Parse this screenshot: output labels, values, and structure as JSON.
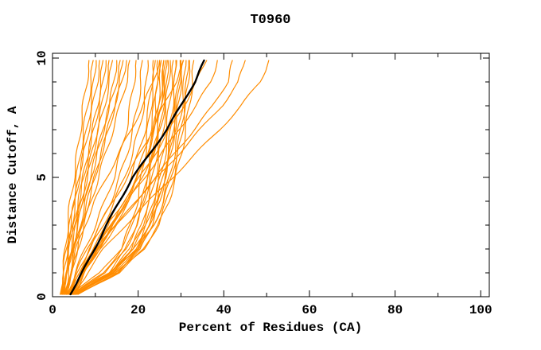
{
  "chart_data": {
    "type": "line",
    "title": "T0960",
    "xlabel": "Percent of Residues (CA)",
    "ylabel": "Distance Cutoff, A",
    "xlim": [
      0,
      102
    ],
    "ylim": [
      0,
      10.2
    ],
    "x_major_ticks": [
      0,
      20,
      40,
      60,
      80,
      100
    ],
    "x_minor_ticks": [
      10,
      30,
      50,
      70,
      90
    ],
    "y_major_ticks": [
      0,
      5,
      10
    ],
    "y_minor_ticks": [
      1,
      2,
      3,
      4,
      6,
      7,
      8,
      9
    ],
    "grid": false,
    "legend": "none",
    "colors": {
      "models": "#ff8c00",
      "highlight": "#000000",
      "axis": "#000000",
      "background": "#ffffff"
    },
    "y_samples": [
      0.1,
      1,
      2,
      3,
      4,
      5,
      6,
      7,
      8,
      9,
      9.9
    ],
    "series": [
      {
        "x": [
          2,
          2.5,
          3,
          3.5,
          4.2,
          5,
          5.8,
          6.5,
          7.2,
          8,
          8.5
        ]
      },
      {
        "x": [
          2.2,
          2.8,
          3.4,
          4.1,
          4.9,
          5.7,
          6.5,
          7.3,
          8.2,
          9,
          9.5
        ]
      },
      {
        "x": [
          2.5,
          3,
          3.7,
          4.5,
          5.3,
          6.2,
          7.1,
          8,
          8.9,
          9.7,
          10.2
        ]
      },
      {
        "x": [
          1.8,
          2.5,
          3.3,
          4.2,
          5.2,
          6.2,
          7.3,
          8.4,
          9.5,
          10.4,
          11
        ]
      },
      {
        "x": [
          2.8,
          3.4,
          4.2,
          5.1,
          6.1,
          7.2,
          8.3,
          9.4,
          10.5,
          11.3,
          11.8
        ]
      },
      {
        "x": [
          2.3,
          3.1,
          4,
          5,
          6.1,
          7.2,
          8.4,
          9.6,
          10.8,
          11.9,
          12.5
        ]
      },
      {
        "x": [
          3,
          3.8,
          4.7,
          5.7,
          6.8,
          8,
          9.2,
          10.4,
          11.6,
          12.6,
          13.2
        ]
      },
      {
        "x": [
          2.6,
          3.5,
          4.5,
          5.6,
          6.8,
          8.1,
          9.4,
          10.8,
          12.1,
          13.3,
          14
        ]
      },
      {
        "x": [
          3.2,
          4.1,
          5.2,
          6.4,
          7.7,
          9,
          10.4,
          11.8,
          13.2,
          14.4,
          15
        ]
      },
      {
        "x": [
          2.4,
          3.4,
          4.6,
          5.9,
          7.3,
          8.8,
          10.3,
          11.9,
          13.4,
          14.9,
          15.8
        ]
      },
      {
        "x": [
          3.5,
          4.5,
          5.7,
          7,
          8.4,
          9.9,
          11.4,
          12.9,
          14.4,
          15.8,
          16.5
        ]
      },
      {
        "x": [
          2.9,
          4,
          5.3,
          6.7,
          8.2,
          9.8,
          11.4,
          13,
          14.6,
          16.2,
          17.3
        ]
      },
      {
        "x": [
          3.3,
          4.5,
          5.9,
          7.4,
          9,
          10.7,
          12.4,
          14.1,
          15.8,
          17.2,
          18
        ]
      },
      {
        "x": [
          4.5,
          12,
          16,
          18.2,
          19.8,
          20.8,
          21.6,
          22.3,
          23,
          23.6,
          24
        ]
      },
      {
        "x": [
          5,
          13,
          17.2,
          19.5,
          21,
          22,
          22.8,
          23.5,
          24.1,
          24.6,
          25
        ]
      },
      {
        "x": [
          4.2,
          12.5,
          17,
          19.8,
          21.5,
          22.7,
          23.6,
          24.4,
          25,
          25.6,
          26
        ]
      },
      {
        "x": [
          5.5,
          14,
          18.4,
          20.8,
          22.3,
          23.4,
          24.3,
          25.1,
          25.8,
          26.4,
          26.8
        ]
      },
      {
        "x": [
          4.8,
          13.4,
          18.2,
          21,
          22.8,
          24,
          25,
          25.8,
          26.5,
          27.1,
          27.5
        ]
      },
      {
        "x": [
          5.2,
          14.4,
          19.3,
          21.9,
          23.6,
          24.8,
          25.8,
          26.6,
          27.3,
          27.8,
          28.2
        ]
      },
      {
        "x": [
          4.4,
          13.2,
          18.8,
          21.8,
          23.8,
          25.2,
          26.3,
          27.2,
          28,
          28.6,
          29
        ]
      },
      {
        "x": [
          5.8,
          15.2,
          20.4,
          23.1,
          24.9,
          26.2,
          27.3,
          28.1,
          28.8,
          29.4,
          29.8
        ]
      },
      {
        "x": [
          4.6,
          13.8,
          19.6,
          22.8,
          24.9,
          26.4,
          27.6,
          28.5,
          29.3,
          30,
          30.5
        ]
      },
      {
        "x": [
          5,
          14.6,
          20.5,
          23.7,
          25.8,
          27.3,
          28.5,
          29.4,
          30.2,
          30.8,
          31.2
        ]
      },
      {
        "x": [
          5.5,
          15.5,
          21.4,
          24.6,
          26.7,
          28.2,
          29.4,
          30.3,
          31,
          31.6,
          32
        ]
      },
      {
        "x": [
          4.9,
          14.9,
          21.2,
          24.8,
          27.1,
          28.8,
          30.1,
          31.1,
          32,
          32.6,
          33
        ]
      },
      {
        "x": [
          6,
          15,
          20,
          22.7,
          24.5,
          25.8,
          26.9,
          27.7,
          28.2,
          28.6,
          28.8
        ]
      },
      {
        "x": [
          5.3,
          13.6,
          19,
          22.4,
          24.6,
          26.2,
          27.5,
          28.5,
          29.2,
          29.7,
          30
        ]
      },
      {
        "x": [
          4,
          11.2,
          15.8,
          18.8,
          20.9,
          22.4,
          23.6,
          24.6,
          25.4,
          26,
          26.5
        ]
      },
      {
        "x": [
          5.6,
          14,
          20,
          23.6,
          26,
          27.7,
          29,
          30,
          30.8,
          31.4,
          31.8
        ]
      },
      {
        "x": [
          3.5,
          5.3,
          7.6,
          10,
          12.3,
          14.3,
          15.9,
          17.2,
          18.2,
          19,
          19.5
        ]
      },
      {
        "x": [
          4,
          6,
          8.5,
          11.2,
          13.6,
          15.7,
          17.4,
          18.8,
          19.9,
          20.6,
          21
        ]
      },
      {
        "x": [
          3.8,
          6,
          8.8,
          11.8,
          14.5,
          16.8,
          18.7,
          20.2,
          21.3,
          22,
          22.3
        ]
      },
      {
        "x": [
          4.3,
          6.7,
          9.7,
          12.9,
          15.8,
          18.2,
          20.1,
          21.6,
          22.6,
          23.2,
          23.5
        ]
      },
      {
        "x": [
          4.7,
          7.4,
          10.8,
          14.3,
          17.4,
          20,
          22,
          23.6,
          24.6,
          25.1,
          25.4
        ]
      },
      {
        "x": [
          4.1,
          6.9,
          10.5,
          14.4,
          17.9,
          20.9,
          23.3,
          25.1,
          26.2,
          26.8,
          27
        ]
      },
      {
        "x": [
          5,
          7.5,
          10.7,
          14,
          16.9,
          19.4,
          21.4,
          22.9,
          23.8,
          24.3,
          24.5
        ]
      },
      {
        "x": [
          4.4,
          7,
          10.2,
          13.8,
          17.1,
          19.9,
          22.2,
          24,
          25.2,
          25.8,
          26
        ]
      },
      {
        "x": [
          3.2,
          4.2,
          5.6,
          7.5,
          9.9,
          12.6,
          15.5,
          18.4,
          21,
          23.6,
          25
        ]
      },
      {
        "x": [
          3.7,
          5.6,
          8,
          10.9,
          14.2,
          17.4,
          20.4,
          23.3,
          26,
          28.7,
          30.6
        ]
      },
      {
        "x": [
          4.2,
          6.4,
          9.3,
          12.8,
          16.6,
          20.4,
          23.9,
          27.4,
          30.6,
          33.6,
          36
        ]
      },
      {
        "x": [
          5,
          7,
          10,
          13.5,
          17.5,
          21.5,
          25.5,
          29.5,
          33.5,
          37,
          38.5
        ]
      },
      {
        "x": [
          5.3,
          7.5,
          11,
          15,
          19.5,
          24,
          28.5,
          33,
          37.5,
          40.8,
          42
        ]
      },
      {
        "x": [
          4.6,
          7,
          10.5,
          15,
          19.5,
          24.5,
          29.5,
          34.5,
          39.5,
          43.5,
          45
        ]
      },
      {
        "x": [
          5.1,
          8,
          12,
          17,
          22.5,
          28,
          33.5,
          39,
          44,
          48.5,
          50.5
        ]
      },
      {
        "x": [
          4.2,
          6.9,
          9.8,
          12.6,
          15.6,
          18.7,
          22.8,
          26.6,
          30,
          33.2,
          35.4
        ],
        "color": "#000000",
        "name": "highlighted-model"
      }
    ]
  }
}
